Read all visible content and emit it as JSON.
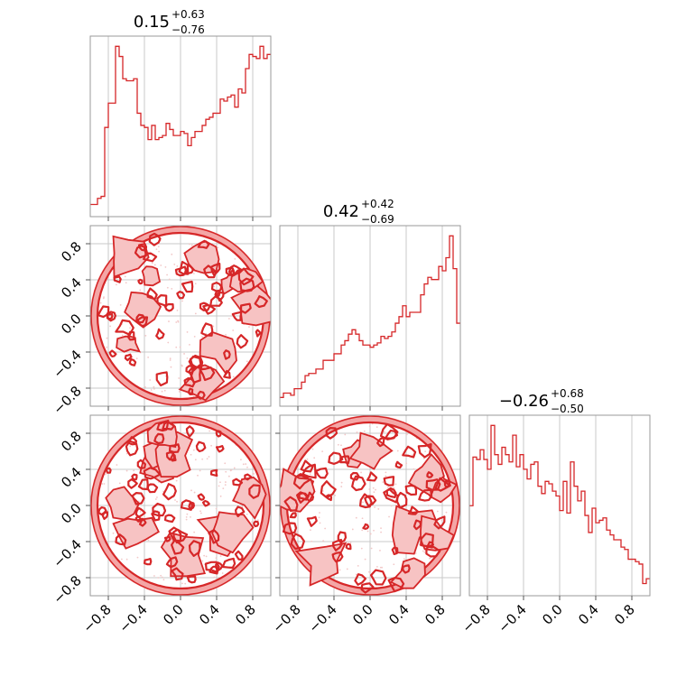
{
  "accent_color": "#d62728",
  "chart_data": {
    "type": "corner",
    "range": [
      -1.0,
      1.0
    ],
    "ticks": [
      -0.8,
      -0.4,
      0.0,
      0.4,
      0.8
    ],
    "tick_labels": [
      "−0.8",
      "−0.4",
      "0.0",
      "0.4",
      "0.8"
    ],
    "grid": true,
    "params": [
      {
        "title_main": "0.15",
        "title_plus": "+0.63",
        "title_minus": "−0.76",
        "hist_edges_start": -1.0,
        "hist_bin_width": 0.04,
        "hist": [
          6,
          6,
          9,
          10,
          44,
          56,
          56,
          84,
          79,
          68,
          67,
          67,
          68,
          51,
          45,
          44,
          38,
          45,
          38,
          39,
          40,
          46,
          43,
          40,
          40,
          42,
          41,
          35,
          39,
          42,
          42,
          45,
          48,
          49,
          51,
          51,
          58,
          57,
          59,
          60,
          54,
          63,
          61,
          73,
          80,
          79,
          78,
          84,
          78,
          80
        ]
      },
      {
        "title_main": "0.42",
        "title_plus": "+0.42",
        "title_minus": "−0.69",
        "hist_edges_start": -1.0,
        "hist_bin_width": 0.04,
        "hist": [
          4,
          6,
          6,
          5,
          8,
          8,
          11,
          14,
          15,
          15,
          17,
          17,
          21,
          21,
          21,
          24,
          24,
          28,
          30,
          33,
          35,
          33,
          30,
          28,
          28,
          27,
          28,
          29,
          32,
          31,
          32,
          34,
          38,
          41,
          46,
          41,
          43,
          43,
          43,
          51,
          56,
          59,
          58,
          58,
          64,
          62,
          68,
          78,
          63,
          38
        ]
      },
      {
        "title_main": "−0.26",
        "title_plus": "+0.68",
        "title_minus": "−0.50",
        "hist_edges_start": -1.0,
        "hist_bin_width": 0.04,
        "hist": [
          37,
          57,
          56,
          60,
          56,
          52,
          70,
          58,
          54,
          61,
          58,
          55,
          66,
          53,
          58,
          52,
          48,
          54,
          55,
          45,
          42,
          47,
          46,
          43,
          41,
          35,
          47,
          34,
          55,
          45,
          39,
          43,
          33,
          26,
          36,
          30,
          31,
          32,
          27,
          25,
          23,
          23,
          20,
          19,
          15,
          15,
          14,
          13,
          5,
          7
        ]
      }
    ],
    "contour_panels": [
      {
        "x_param": 0,
        "y_param": 1
      },
      {
        "x_param": 0,
        "y_param": 2
      },
      {
        "x_param": 1,
        "y_param": 2
      }
    ]
  }
}
